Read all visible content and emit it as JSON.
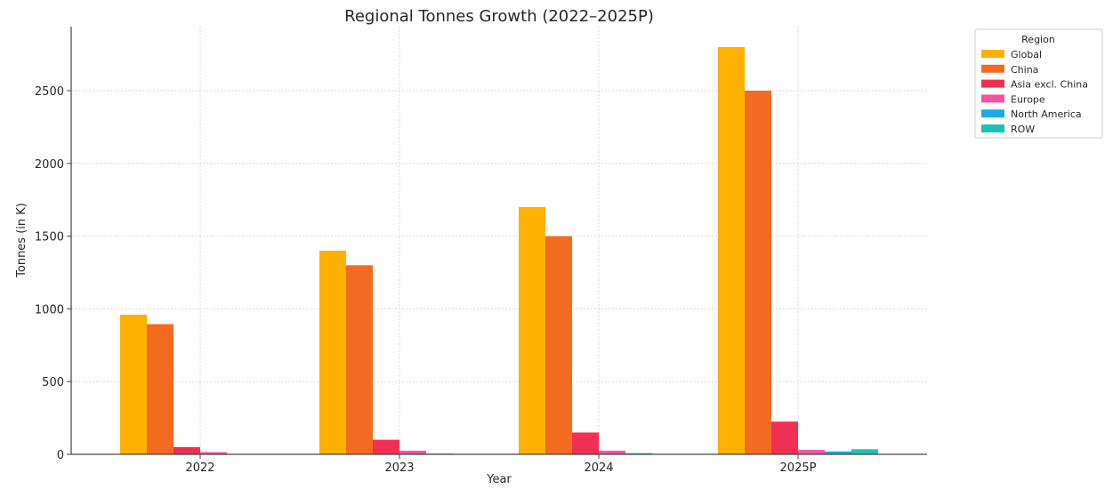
{
  "chart_data": {
    "type": "bar",
    "title": "Regional Tonnes Growth (2022–2025P)",
    "xlabel": "Year",
    "ylabel": "Tonnes (in K)",
    "categories": [
      "2022",
      "2023",
      "2024",
      "2025P"
    ],
    "ylim": [
      0,
      2940
    ],
    "yticks": [
      0,
      500,
      1000,
      1500,
      2000,
      2500
    ],
    "grid": true,
    "legend_title": "Region",
    "legend_position": "outside top-right",
    "series": [
      {
        "name": "Global",
        "color": "#FFB000",
        "values": [
          960,
          1400,
          1700,
          2800
        ]
      },
      {
        "name": "China",
        "color": "#F26B21",
        "values": [
          895,
          1300,
          1500,
          2500
        ]
      },
      {
        "name": "Asia excl. China",
        "color": "#EF3054",
        "values": [
          50,
          100,
          150,
          225
        ]
      },
      {
        "name": "Europe",
        "color": "#F2559E",
        "values": [
          15,
          25,
          25,
          30
        ]
      },
      {
        "name": "North America",
        "color": "#1CA9E6",
        "values": [
          2,
          5,
          8,
          20
        ]
      },
      {
        "name": "ROW",
        "color": "#1BC4B4",
        "values": [
          0,
          0,
          0,
          35
        ]
      }
    ]
  }
}
